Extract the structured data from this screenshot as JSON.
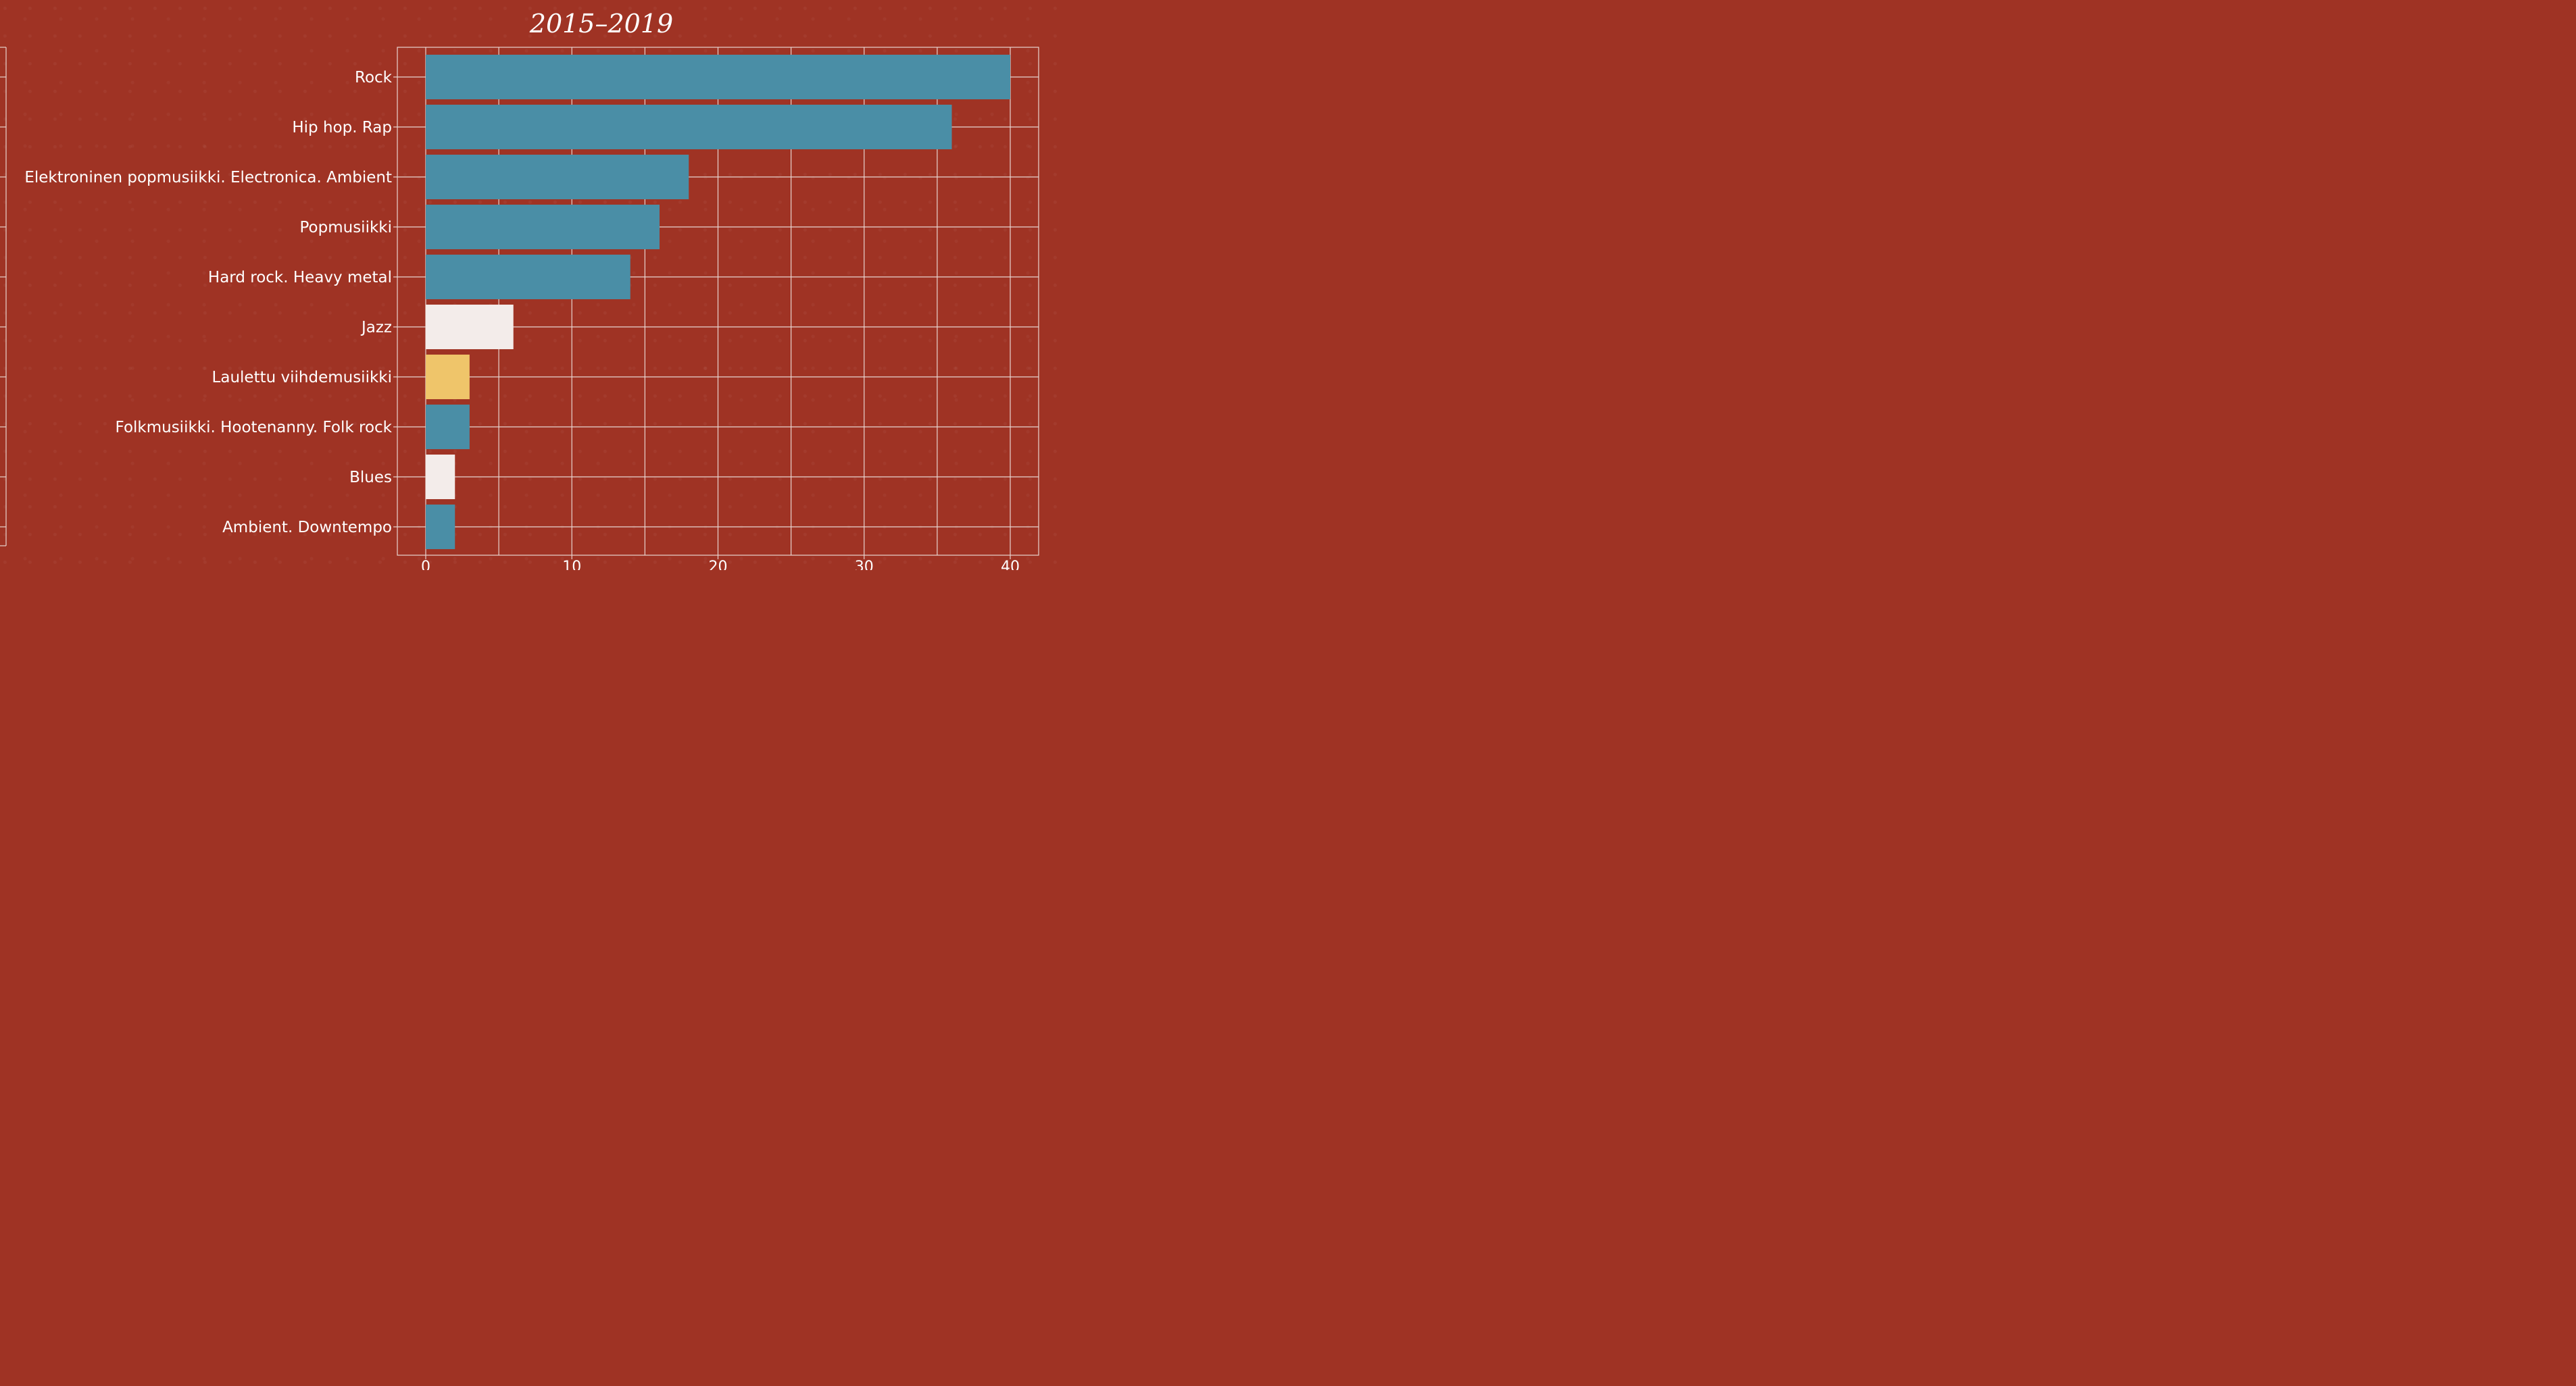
{
  "chart_data": {
    "type": "bar",
    "orientation": "horizontal",
    "title": "2015–2019",
    "xlabel": "",
    "ylabel": "",
    "categories": [
      "Rock",
      "Hip hop. Rap",
      "Elektroninen popmusiikki. Electronica. Ambient",
      "Popmusiikki",
      "Hard rock. Heavy metal",
      "Jazz",
      "Laulettu viihdemusiikki",
      "Folkmusiikki. Hootenanny. Folk rock",
      "Blues",
      "Ambient. Downtempo"
    ],
    "values": [
      40,
      36,
      18,
      16,
      14,
      6,
      3,
      3,
      2,
      2
    ],
    "bar_colors": [
      "#4a8ea6",
      "#4a8ea6",
      "#4a8ea6",
      "#4a8ea6",
      "#4a8ea6",
      "#f3ecea",
      "#efc56a",
      "#4a8ea6",
      "#f3ecea",
      "#4a8ea6"
    ],
    "xlim": [
      -2,
      42
    ],
    "xticks": [
      0,
      10,
      20,
      30,
      40
    ],
    "grid": true,
    "legend": "none"
  },
  "colors": {
    "background": "#9f3324",
    "grid": "#e8d5d0",
    "text": "#ffffff"
  }
}
